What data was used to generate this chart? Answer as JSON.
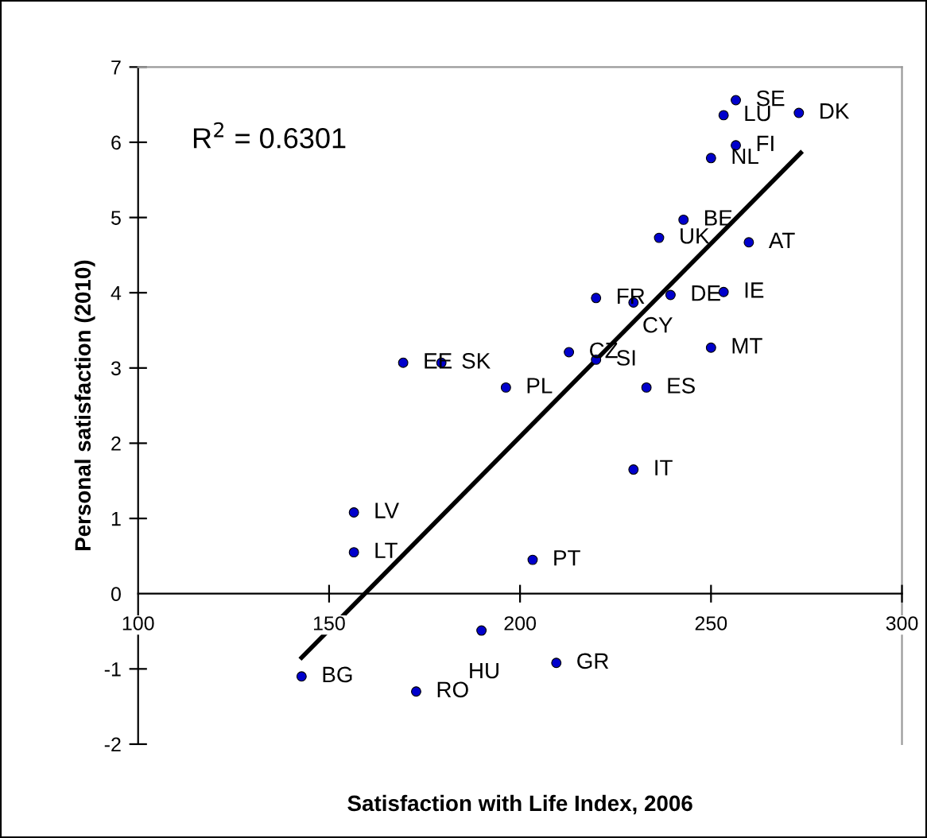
{
  "chart_data": {
    "type": "scatter",
    "xlabel": "Satisfaction with Life Index, 2006",
    "ylabel": "Personal satisfaction (2010)",
    "series": [
      {
        "type": "scatter",
        "color": "#0000cc",
        "marker": "circle",
        "x": [
          256.5,
          253.3,
          273,
          256.5,
          250,
          242.8,
          236.4,
          259.9,
          253.3,
          219.9,
          229.7,
          239.4,
          250,
          169.4,
          179.4,
          212.8,
          219.9,
          196.3,
          233.1,
          229.7,
          156.5,
          156.5,
          203.3,
          189.9,
          142.8,
          172.8,
          209.5
        ],
        "values": [
          6.56,
          6.36,
          6.39,
          5.96,
          5.79,
          4.97,
          4.73,
          4.67,
          4.01,
          3.93,
          3.87,
          3.97,
          3.27,
          3.07,
          3.07,
          3.21,
          3.11,
          2.74,
          2.74,
          1.65,
          1.08,
          0.55,
          0.45,
          -0.49,
          -1.1,
          -1.3,
          -0.92
        ]
      },
      {
        "type": "line",
        "color": "#000000",
        "marker": "none",
        "line_style": "solid",
        "x": [
          142.8,
          273.5
        ],
        "values": [
          -0.85,
          5.86
        ]
      }
    ],
    "annotations": [
      {
        "text": "SE",
        "x": 256.5,
        "y": 6.56
      },
      {
        "text": "LU",
        "x": 253.3,
        "y": 6.36
      },
      {
        "text": "DK",
        "x": 273,
        "y": 6.39
      },
      {
        "text": "FI",
        "x": 256.5,
        "y": 5.96
      },
      {
        "text": "NL",
        "x": 250,
        "y": 5.79
      },
      {
        "text": "BE",
        "x": 242.8,
        "y": 4.97
      },
      {
        "text": "UK",
        "x": 236.4,
        "y": 4.73
      },
      {
        "text": "AT",
        "x": 259.9,
        "y": 4.67
      },
      {
        "text": "IE",
        "x": 253.3,
        "y": 4.01
      },
      {
        "text": "FR",
        "x": 219.9,
        "y": 3.93
      },
      {
        "text": "CY",
        "x": 229.7,
        "y": 3.87
      },
      {
        "text": "DE",
        "x": 239.4,
        "y": 3.97
      },
      {
        "text": "MT",
        "x": 250,
        "y": 3.27
      },
      {
        "text": "EE",
        "x": 169.4,
        "y": 3.07
      },
      {
        "text": "SK",
        "x": 179.4,
        "y": 3.07
      },
      {
        "text": "CZ",
        "x": 212.8,
        "y": 3.21
      },
      {
        "text": "SI",
        "x": 219.9,
        "y": 3.11
      },
      {
        "text": "PL",
        "x": 196.3,
        "y": 2.74
      },
      {
        "text": "ES",
        "x": 233.1,
        "y": 2.74
      },
      {
        "text": "IT",
        "x": 229.7,
        "y": 1.65
      },
      {
        "text": "LV",
        "x": 156.5,
        "y": 1.08
      },
      {
        "text": "LT",
        "x": 156.5,
        "y": 0.55
      },
      {
        "text": "PT",
        "x": 203.3,
        "y": 0.45
      },
      {
        "text": "HU",
        "x": 189.9,
        "y": -0.49
      },
      {
        "text": "BG",
        "x": 142.8,
        "y": -1.1
      },
      {
        "text": "RO",
        "x": 172.8,
        "y": -1.3
      },
      {
        "text": "GR",
        "x": 209.5,
        "y": -0.92
      },
      "R$^{2}$ = 0.6301"
    ],
    "xlim": [
      100,
      300
    ],
    "xticks": [
      100,
      150,
      200,
      250,
      300
    ],
    "ylim": [
      -2,
      7
    ],
    "yticks": [
      -2,
      -1,
      0,
      1,
      2,
      3,
      4,
      5,
      6,
      7
    ],
    "grid": false,
    "legend": false
  }
}
